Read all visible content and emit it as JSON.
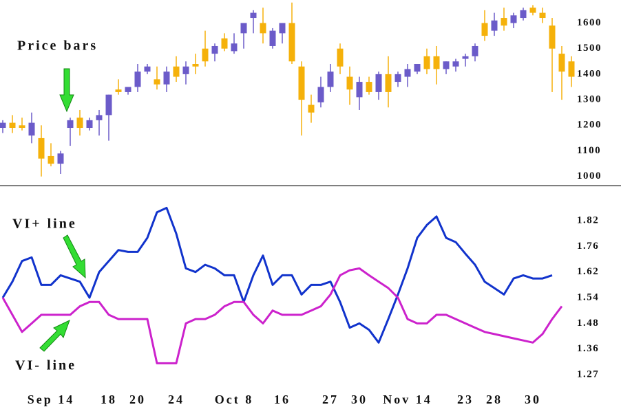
{
  "chart_data": [
    {
      "type": "candlestick",
      "annotation": "Price bars",
      "open": [
        1190,
        1210,
        1200,
        1160,
        1150,
        1080,
        1050,
        1190,
        1230,
        1190,
        1220,
        1240,
        1340,
        1330,
        1350,
        1410,
        1380,
        1360,
        1430,
        1400,
        1440,
        1500,
        1480,
        1540,
        1490,
        1560,
        1620,
        1600,
        1510,
        1560,
        1600,
        1430,
        1280,
        1290,
        1350,
        1500,
        1390,
        1310,
        1370,
        1330,
        1400,
        1370,
        1390,
        1410,
        1470,
        1470,
        1420,
        1430,
        1460,
        1470,
        1600,
        1570,
        1620,
        1600,
        1620,
        1660,
        1640,
        1590,
        1480,
        1450
      ],
      "high": [
        1220,
        1240,
        1230,
        1250,
        1200,
        1130,
        1100,
        1230,
        1260,
        1230,
        1260,
        1320,
        1380,
        1350,
        1440,
        1440,
        1430,
        1430,
        1470,
        1450,
        1480,
        1570,
        1520,
        1560,
        1560,
        1600,
        1650,
        1660,
        1580,
        1600,
        1680,
        1450,
        1320,
        1390,
        1440,
        1520,
        1430,
        1390,
        1390,
        1410,
        1470,
        1410,
        1440,
        1440,
        1500,
        1510,
        1450,
        1460,
        1480,
        1520,
        1650,
        1640,
        1660,
        1640,
        1660,
        1670,
        1660,
        1620,
        1510,
        1470
      ],
      "low": [
        1170,
        1170,
        1180,
        1130,
        1000,
        1040,
        1010,
        1120,
        1160,
        1180,
        1160,
        1140,
        1320,
        1320,
        1330,
        1400,
        1340,
        1330,
        1370,
        1360,
        1400,
        1430,
        1450,
        1490,
        1480,
        1500,
        1560,
        1520,
        1500,
        1520,
        1440,
        1160,
        1210,
        1270,
        1330,
        1400,
        1280,
        1260,
        1320,
        1300,
        1270,
        1350,
        1350,
        1400,
        1400,
        1360,
        1400,
        1410,
        1430,
        1450,
        1530,
        1550,
        1570,
        1580,
        1610,
        1630,
        1600,
        1330,
        1300,
        1350
      ],
      "close": [
        1210,
        1190,
        1190,
        1210,
        1070,
        1050,
        1090,
        1220,
        1190,
        1220,
        1240,
        1320,
        1330,
        1350,
        1410,
        1430,
        1360,
        1410,
        1390,
        1430,
        1430,
        1450,
        1510,
        1500,
        1520,
        1600,
        1640,
        1560,
        1570,
        1600,
        1450,
        1300,
        1250,
        1350,
        1410,
        1430,
        1340,
        1370,
        1330,
        1400,
        1330,
        1400,
        1420,
        1440,
        1420,
        1420,
        1450,
        1450,
        1470,
        1510,
        1550,
        1610,
        1590,
        1630,
        1650,
        1640,
        1620,
        1500,
        1410,
        1390
      ],
      "up_color": "#6b5bc9",
      "down_color": "#f5b10a",
      "ylim": [
        975,
        1690
      ],
      "yticks": [
        1000,
        1100,
        1200,
        1300,
        1400,
        1500,
        1600
      ]
    },
    {
      "type": "line",
      "categories": [
        null,
        null,
        null,
        null,
        null,
        "Sep 14",
        null,
        null,
        null,
        null,
        null,
        "18",
        null,
        null,
        "20",
        null,
        null,
        null,
        "24",
        null,
        null,
        null,
        null,
        null,
        "Oct 8",
        null,
        null,
        null,
        null,
        "16",
        null,
        null,
        null,
        null,
        "27",
        null,
        null,
        "30",
        null,
        null,
        null,
        null,
        "Nov 14",
        null,
        null,
        null,
        null,
        null,
        "23",
        null,
        null,
        "28",
        null,
        null,
        null,
        "30",
        null,
        null,
        null,
        null
      ],
      "series": [
        {
          "name": "VI+ line",
          "color": "#1133cc",
          "values": [
            1.54,
            1.59,
            1.68,
            1.7,
            1.58,
            1.58,
            1.61,
            1.6,
            1.59,
            1.54,
            1.62,
            1.68,
            1.74,
            1.73,
            1.73,
            1.78,
            1.84,
            1.85,
            1.79,
            1.64,
            1.62,
            1.66,
            1.64,
            1.61,
            1.61,
            1.53,
            1.61,
            1.71,
            1.58,
            1.61,
            1.61,
            1.55,
            1.58,
            1.58,
            1.59,
            1.53,
            1.46,
            1.48,
            1.45,
            1.39,
            1.49,
            1.55,
            1.64,
            1.78,
            1.81,
            1.83,
            1.78,
            1.77,
            1.72,
            1.66,
            1.59,
            1.57,
            1.55,
            1.6,
            1.61,
            1.6,
            1.6,
            1.61,
            null,
            null
          ]
        },
        {
          "name": "VI- line",
          "color": "#cc22cc",
          "values": [
            1.54,
            1.5,
            1.44,
            1.48,
            1.5,
            1.5,
            1.5,
            1.5,
            1.52,
            1.53,
            1.53,
            1.5,
            1.49,
            1.49,
            1.49,
            1.49,
            1.31,
            1.31,
            1.31,
            1.48,
            1.49,
            1.49,
            1.5,
            1.52,
            1.53,
            1.53,
            1.5,
            1.48,
            1.51,
            1.5,
            1.5,
            1.5,
            1.51,
            1.52,
            1.55,
            1.61,
            1.63,
            1.64,
            1.61,
            1.59,
            1.57,
            1.54,
            1.49,
            1.48,
            1.48,
            1.5,
            1.5,
            1.49,
            1.48,
            1.46,
            1.44,
            1.43,
            1.42,
            1.41,
            1.4,
            1.39,
            1.43,
            1.49,
            1.52,
            null
          ]
        }
      ],
      "ylim": [
        1.235,
        1.87
      ],
      "yticks": [
        1.82,
        1.76,
        1.62,
        1.54,
        1.48,
        1.36,
        1.27
      ]
    }
  ]
}
